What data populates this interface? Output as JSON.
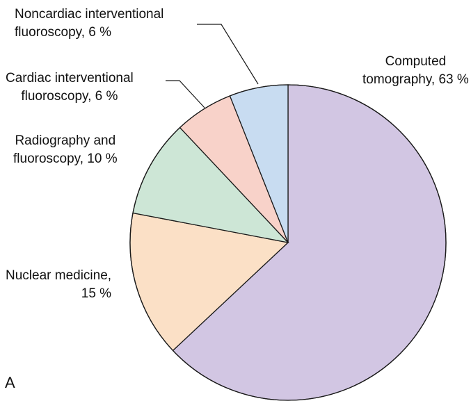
{
  "chart_data": {
    "type": "pie",
    "title": "",
    "unit": "%",
    "start": "12 o'clock",
    "direction": "clockwise",
    "slices": [
      {
        "label_lines": [
          "Computed",
          "tomography, 63 %"
        ],
        "value": 63,
        "color": "#d2c6e3"
      },
      {
        "label_lines": [
          "Nuclear medicine,",
          "15 %"
        ],
        "value": 15,
        "color": "#fbe0c6"
      },
      {
        "label_lines": [
          "Radiography and",
          "fluoroscopy, 10 %"
        ],
        "value": 10,
        "color": "#cde6d6"
      },
      {
        "label_lines": [
          "Cardiac interventional",
          "fluoroscopy, 6 %"
        ],
        "value": 6,
        "color": "#f8d2c9"
      },
      {
        "label_lines": [
          "Noncardiac interventional",
          "fluoroscopy, 6 %"
        ],
        "value": 6,
        "color": "#c8dcf1"
      }
    ]
  },
  "panel_label": "A"
}
